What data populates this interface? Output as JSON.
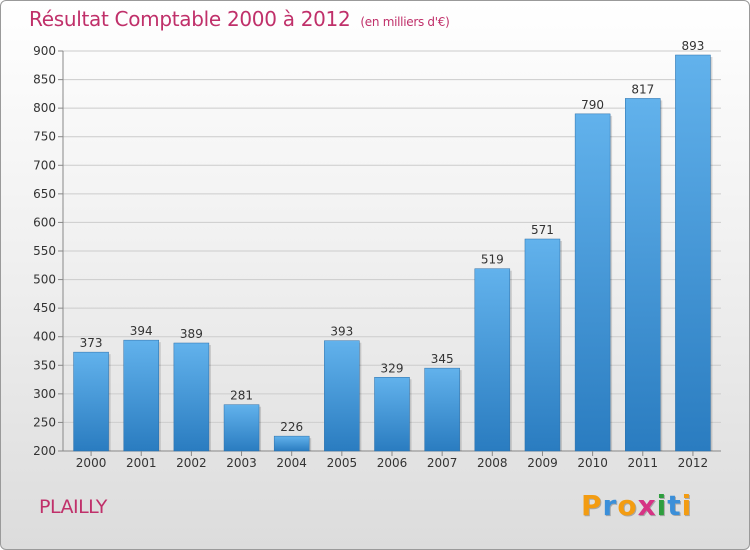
{
  "title": "Résultat Comptable 2000 à 2012",
  "unit": "(en milliers d'€)",
  "commune": "PLAILLY",
  "logo": {
    "letters": [
      "P",
      "r",
      "o",
      "x",
      "i",
      "t",
      "i"
    ],
    "colors": [
      "#f39c12",
      "#3b8fd9",
      "#f39c12",
      "#d63384",
      "#2e9e3e",
      "#3b8fd9",
      "#f39c12"
    ]
  },
  "colors": {
    "bar_top": "#62b2ec",
    "bar_bottom": "#2a7cc0",
    "title": "#c0306a",
    "grid": "#cccccc"
  },
  "chart_data": {
    "type": "bar",
    "title": "Résultat Comptable 2000 à 2012",
    "xlabel": "",
    "ylabel": "",
    "categories": [
      "2000",
      "2001",
      "2002",
      "2003",
      "2004",
      "2005",
      "2006",
      "2007",
      "2008",
      "2009",
      "2010",
      "2011",
      "2012"
    ],
    "values": [
      373,
      394,
      389,
      281,
      226,
      393,
      329,
      345,
      519,
      571,
      790,
      817,
      893
    ],
    "ylim": [
      200,
      900
    ],
    "yticks": [
      200,
      250,
      300,
      350,
      400,
      450,
      500,
      550,
      600,
      650,
      700,
      750,
      800,
      850,
      900
    ],
    "grid": true
  }
}
